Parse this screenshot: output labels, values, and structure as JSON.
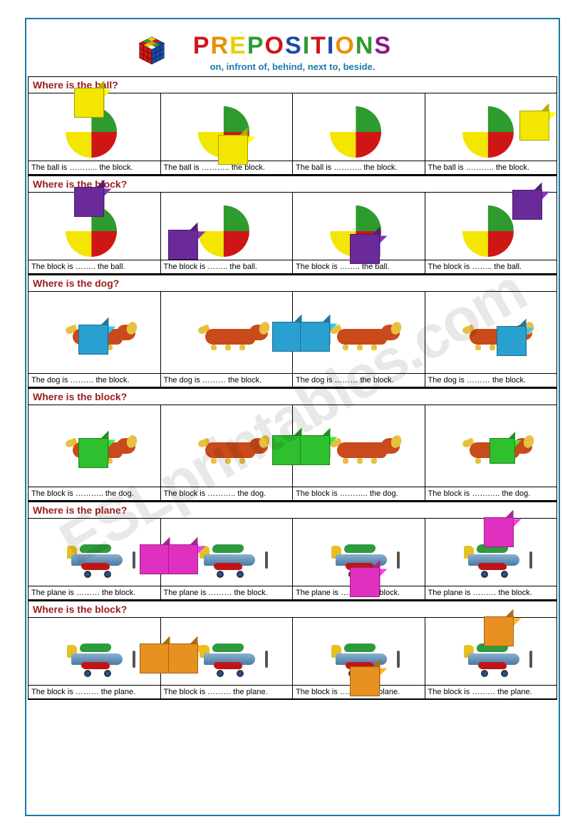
{
  "header": {
    "title_letters": [
      {
        "t": "P",
        "c": "#d01515"
      },
      {
        "t": "R",
        "c": "#e89000"
      },
      {
        "t": "E",
        "c": "#e8d000"
      },
      {
        "t": "P",
        "c": "#2e9b2e"
      },
      {
        "t": "O",
        "c": "#d01515"
      },
      {
        "t": "S",
        "c": "#1a4aa8"
      },
      {
        "t": "I",
        "c": "#2e9b2e"
      },
      {
        "t": "T",
        "c": "#d01515"
      },
      {
        "t": "I",
        "c": "#1a4aa8"
      },
      {
        "t": "O",
        "c": "#e89000"
      },
      {
        "t": "N",
        "c": "#2e9b2e"
      },
      {
        "t": "S",
        "c": "#8a1a8a"
      }
    ],
    "subtitle": "on, infront of, behind, next to, beside."
  },
  "watermark": "ESLprintables.com",
  "cube_colors": {
    "yellow": "#f3e600",
    "purple": "#6a2a9a",
    "cyan": "#2aa0d0",
    "green": "#2ec02e",
    "magenta": "#e030c0",
    "orange": "#e89020"
  },
  "sections": [
    {
      "question": "Where is the ball?",
      "caption_tpl": "The ball is ……….. the block.",
      "obj": "ball",
      "cube_color": "yellow",
      "pic_h": "short",
      "layouts": [
        "cube_on_ball",
        "cube_front_low",
        "ball_alone_maybe_behind",
        "cube_right_of_ball"
      ]
    },
    {
      "question": "Where is the block?",
      "caption_tpl": "The block is …….. the ball.",
      "obj": "ball",
      "cube_color": "purple",
      "pic_h": "short",
      "layouts": [
        "cube_on_ball",
        "cube_left_of_ball",
        "cube_front_low",
        "cube_top_right"
      ]
    },
    {
      "question": "Where is the dog?",
      "caption_tpl": "The dog is ……… the block.",
      "obj": "dog",
      "cube_color": "cyan",
      "pic_h": "tall",
      "layouts": [
        "cube_front_center",
        "cube_right",
        "cube_left",
        "cube_front_right"
      ]
    },
    {
      "question": "Where is the block?",
      "caption_tpl": "The block is ……….. the dog.",
      "obj": "dog",
      "cube_color": "green",
      "pic_h": "tall",
      "layouts": [
        "cube_front_center",
        "cube_right",
        "cube_left",
        "cube_front_right_small"
      ]
    },
    {
      "question": "Where is the plane?",
      "caption_tpl": "The plane is ……… the block.",
      "obj": "plane",
      "cube_color": "magenta",
      "pic_h": "short",
      "layouts": [
        "cube_right",
        "cube_left",
        "cube_front_low",
        "cube_on_top"
      ]
    },
    {
      "question": "Where is the block?",
      "caption_tpl": "The block is ……… the plane.",
      "obj": "plane",
      "cube_color": "orange",
      "pic_h": "short",
      "layouts": [
        "cube_right",
        "cube_left",
        "cube_front_low",
        "cube_on_top"
      ]
    }
  ]
}
